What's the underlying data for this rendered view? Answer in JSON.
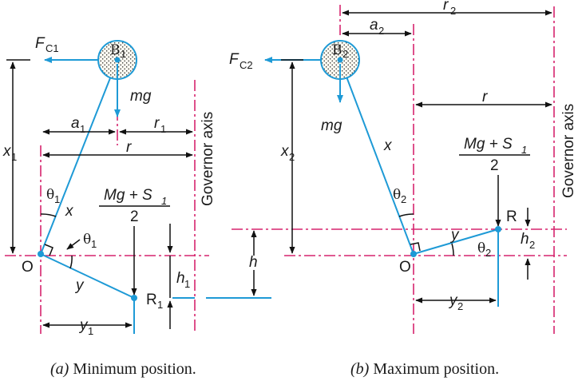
{
  "panel_a": {
    "ball_label": "B",
    "ball_sub": "1",
    "force_label": "F",
    "force_sub": "C1",
    "weight": "mg",
    "height_label": "x",
    "height_sub": "1",
    "offset_label": "a",
    "offset_sub": "1",
    "radius_label": "r",
    "radius_sub": "1",
    "total_radius": "r",
    "arm": "x",
    "theta": "θ",
    "theta_sub": "1",
    "theta2": "θ",
    "theta2_sub": "1",
    "sleeve_load_num": "Mg + S",
    "sleeve_load_num_sub": "1",
    "sleeve_load_den": "2",
    "pivot": "O",
    "link_y": "y",
    "sleeve_point": "R",
    "sleeve_point_sub": "1",
    "lift": "h",
    "lift_sub": "1",
    "horiz_y": "y",
    "horiz_y_sub": "1",
    "axis_label": "Governor axis",
    "caption_letter": "(a)",
    "caption_text": " Minimum position."
  },
  "middle": {
    "lift": "h"
  },
  "panel_b": {
    "ball_label": "B",
    "ball_sub": "2",
    "force_label": "F",
    "force_sub": "C2",
    "weight": "mg",
    "height_label": "x",
    "height_sub": "2",
    "offset_label": "a",
    "offset_sub": "2",
    "radius_label": "r",
    "radius_sub": "2",
    "total_radius": "r",
    "arm": "x",
    "theta": "θ",
    "theta_sub": "2",
    "theta2": "θ",
    "theta2_sub": "2",
    "sleeve_load_num": "Mg + S",
    "sleeve_load_num_sub": "1",
    "sleeve_load_den": "2",
    "pivot": "O",
    "link_y": "y",
    "sleeve_point": "R",
    "lift": "h",
    "lift_sub": "2",
    "horiz_y": "y",
    "horiz_y_sub": "2",
    "axis_label": "Governor axis",
    "caption_letter": "(b)",
    "caption_text": " Maximum position."
  },
  "colors": {
    "link": "#1e9ad6",
    "axis": "#d6246e",
    "text": "#1a1a1a"
  }
}
